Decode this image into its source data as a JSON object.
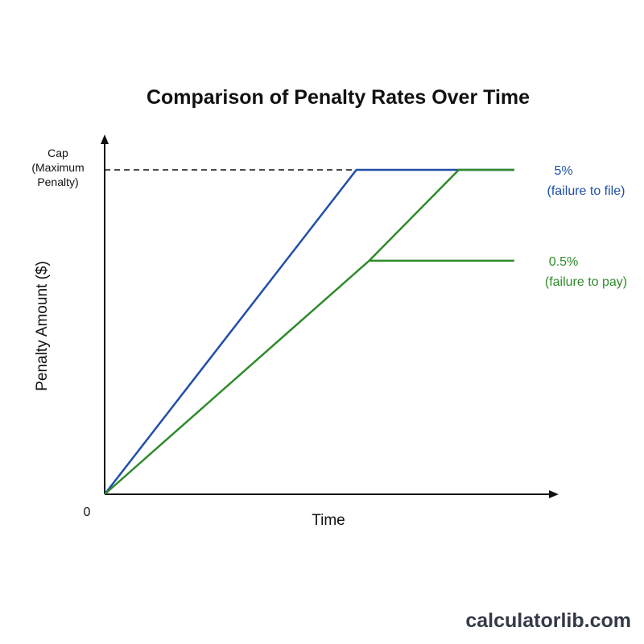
{
  "chart_data": {
    "type": "line",
    "title": "Comparison of Penalty Rates Over Time",
    "xlabel": "Time",
    "ylabel": "Penalty Amount ($)",
    "origin_label": "0",
    "cap_label": [
      "Cap",
      "(Maximum",
      "Penalty)"
    ],
    "x_range": [
      0,
      100
    ],
    "y_range": [
      0,
      100
    ],
    "cap_value": 100,
    "grid": false,
    "legend": "inline-right",
    "series": [
      {
        "name": "5%",
        "description": "(failure to file)",
        "color": "#1f4fa8",
        "points": [
          [
            0,
            0
          ],
          [
            59,
            100
          ],
          [
            96,
            100
          ]
        ]
      },
      {
        "name": "0.5%",
        "description": "(failure to pay)",
        "color": "#2f8a2a",
        "points": [
          [
            0,
            0
          ],
          [
            62,
            72
          ],
          [
            96,
            72
          ]
        ],
        "extension": [
          [
            62,
            72
          ],
          [
            83,
            100
          ],
          [
            96,
            100
          ]
        ]
      }
    ]
  },
  "watermark": "calculatorlib.com"
}
